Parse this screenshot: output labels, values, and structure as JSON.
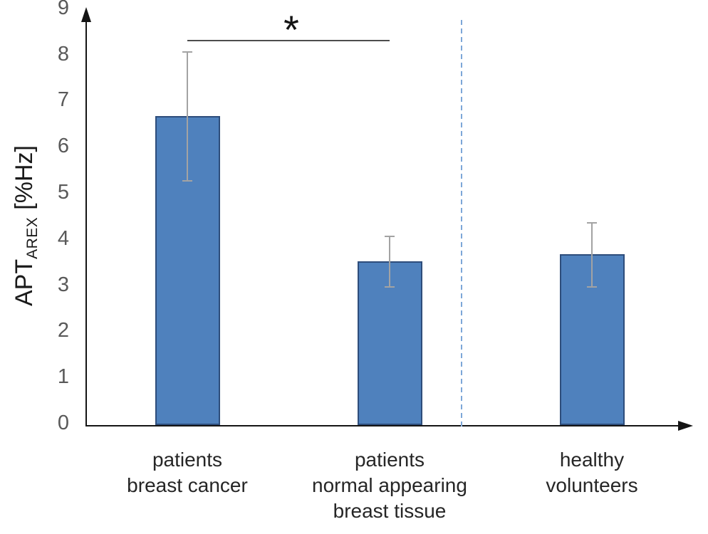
{
  "chart_data": {
    "type": "bar",
    "title": "",
    "ylabel_parts": {
      "main": "APT",
      "subscript": "AREX",
      "unit": "[%Hz]"
    },
    "ylim": [
      0,
      9
    ],
    "yticks": [
      0,
      1,
      2,
      3,
      4,
      5,
      6,
      7,
      8,
      9
    ],
    "grid": "off",
    "legend": "none",
    "categories": [
      {
        "lines": [
          "patients",
          "breast cancer"
        ]
      },
      {
        "lines": [
          "patients",
          "normal appearing",
          "breast tissue"
        ]
      },
      {
        "lines": [
          "healthy",
          "volunteers"
        ]
      }
    ],
    "series": [
      {
        "name": "APT_AREX",
        "values": [
          6.7,
          3.55,
          3.7
        ],
        "error_low": [
          5.3,
          3.0,
          3.0
        ],
        "error_high": [
          8.1,
          4.1,
          4.4
        ]
      }
    ],
    "significance": {
      "symbol": "*",
      "between_categories": [
        0,
        1
      ]
    },
    "separator": {
      "style": "dashed",
      "after_category_index": 1
    },
    "colors": {
      "bar_fill": "#4f81bd",
      "bar_border": "#2e4d7b",
      "error_bar": "#a3a3a3",
      "axis": "#141414",
      "tick_label": "#595959",
      "category_label": "#262626",
      "significance": "#4d4d4d",
      "separator": "#7da7d8"
    }
  }
}
